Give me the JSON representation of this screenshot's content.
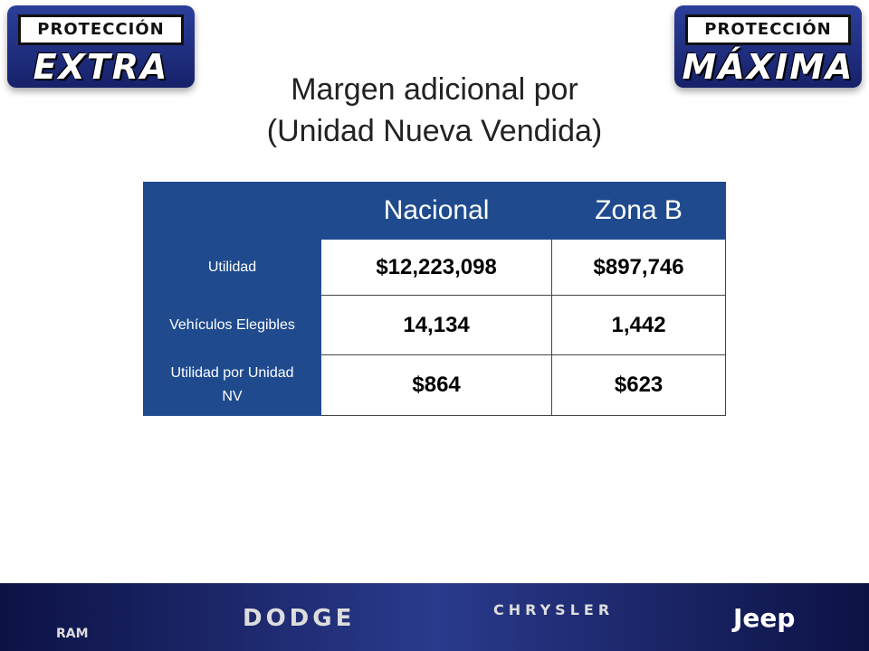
{
  "badges": [
    {
      "top": "PROTECCIÓN",
      "bottom": "EXTRA"
    },
    {
      "top": "PROTECCIÓN",
      "bottom": "MÁXIMA"
    }
  ],
  "title": [
    "Margen adicional por",
    "(Unidad Nueva Vendida)"
  ],
  "table": {
    "columns": [
      "Nacional",
      "Zona B"
    ],
    "rows": [
      [
        "Utilidad",
        "$12,223,098",
        "$897,746"
      ],
      [
        "Vehículos Elegibles",
        "14,134",
        "1,442"
      ],
      [
        "Utilidad por Unidad NV",
        "$864",
        "$623"
      ]
    ]
  },
  "footer": {
    "brands": [
      "RAM",
      "DODGE",
      "CHRYSLER",
      "Jeep"
    ]
  }
}
